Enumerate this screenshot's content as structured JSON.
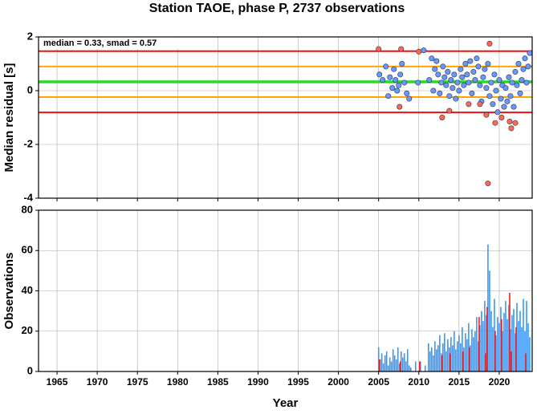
{
  "chart_data": [
    {
      "type": "scatter",
      "title": "Station TAOE, phase P, 2737 observations",
      "annotation": "median = 0.33, smad = 0.57",
      "ylabel": "Median residual [s]",
      "xlim": [
        1962.7,
        2024.1
      ],
      "xticks": [
        1965,
        1970,
        1975,
        1980,
        1985,
        1990,
        1995,
        2000,
        2005,
        2010,
        2015,
        2020
      ],
      "show_xtick_labels": false,
      "ylim": [
        -4,
        2
      ],
      "yticks": [
        -4,
        -2,
        0,
        2
      ],
      "grid": true,
      "reference_lines": [
        {
          "value": 1.47,
          "color": "#ee1111"
        },
        {
          "value": 0.9,
          "color": "#ffa500"
        },
        {
          "value": 0.33,
          "color": "#22dd22"
        },
        {
          "value": -0.24,
          "color": "#ffa500"
        },
        {
          "value": -0.81,
          "color": "#ee1111"
        }
      ],
      "series": [
        {
          "color": "#6699ff",
          "x": [
            2005.1,
            2005.5,
            2005.9,
            2006.2,
            2006.4,
            2006.7,
            2006.9,
            2007.1,
            2007.3,
            2007.5,
            2007.7,
            2007.9,
            2008.2,
            2008.5,
            2008.8,
            2009.9,
            2010.6,
            2011.3,
            2011.6,
            2011.8,
            2012.0,
            2012.2,
            2012.4,
            2012.6,
            2012.8,
            2013.0,
            2013.2,
            2013.4,
            2013.6,
            2013.8,
            2014.0,
            2014.2,
            2014.4,
            2014.6,
            2014.8,
            2015.0,
            2015.2,
            2015.4,
            2015.6,
            2015.8,
            2016.0,
            2016.2,
            2016.4,
            2016.6,
            2016.8,
            2017.0,
            2017.2,
            2017.4,
            2017.6,
            2017.8,
            2018.0,
            2018.2,
            2018.4,
            2018.6,
            2018.8,
            2019.0,
            2019.2,
            2019.4,
            2019.6,
            2019.8,
            2020.0,
            2020.2,
            2020.4,
            2020.6,
            2020.8,
            2021.0,
            2021.2,
            2021.4,
            2021.6,
            2021.8,
            2022.0,
            2022.2,
            2022.4,
            2022.6,
            2022.8,
            2023.0,
            2023.2,
            2023.4,
            2023.6,
            2023.8
          ],
          "values": [
            0.6,
            0.4,
            0.9,
            -0.2,
            0.5,
            0.1,
            0.8,
            0.4,
            0.0,
            0.2,
            0.6,
            1.0,
            0.3,
            -0.1,
            -0.3,
            0.3,
            1.5,
            0.4,
            1.2,
            0.0,
            0.8,
            1.1,
            0.6,
            -0.1,
            0.3,
            0.9,
            0.5,
            0.2,
            0.7,
            -0.2,
            0.4,
            0.1,
            0.6,
            -0.3,
            0.3,
            0.0,
            0.8,
            0.5,
            0.2,
            1.0,
            0.6,
            0.3,
            1.1,
            -0.1,
            0.7,
            0.4,
            1.2,
            0.9,
            0.2,
            -0.4,
            0.5,
            0.8,
            0.1,
            1.0,
            -0.2,
            0.3,
            -0.5,
            0.6,
            0.0,
            -0.8,
            0.4,
            -0.3,
            0.2,
            -0.6,
            0.1,
            -0.4,
            0.5,
            -0.2,
            0.3,
            -0.6,
            0.7,
            0.2,
            1.0,
            -0.1,
            0.4,
            0.8,
            1.2,
            0.3,
            0.9,
            1.4
          ]
        },
        {
          "color": "#ff6655",
          "x": [
            2005.0,
            2007.8,
            2007.6,
            2010.0,
            2012.9,
            2013.8,
            2016.2,
            2017.6,
            2018.4,
            2018.6,
            2018.8,
            2019.5,
            2020.3,
            2021.3,
            2021.5,
            2022.0
          ],
          "values": [
            1.55,
            1.55,
            -0.6,
            1.45,
            -1.0,
            -0.75,
            -0.5,
            -0.5,
            -0.9,
            -3.45,
            1.75,
            -1.2,
            -1.0,
            -1.15,
            -1.4,
            -1.2
          ]
        }
      ]
    },
    {
      "type": "bar",
      "xlabel": "Year",
      "ylabel": "Observations",
      "xlim": [
        1962.7,
        2024.1
      ],
      "xticks": [
        1965,
        1970,
        1975,
        1980,
        1985,
        1990,
        1995,
        2000,
        2005,
        2010,
        2015,
        2020
      ],
      "show_xtick_labels": true,
      "ylim": [
        0,
        80
      ],
      "yticks": [
        0,
        20,
        40,
        60,
        80
      ],
      "grid": true,
      "series": [
        {
          "color": "#3399ff",
          "x": [
            2005.0,
            2005.2,
            2005.4,
            2005.6,
            2005.8,
            2006.0,
            2006.2,
            2006.4,
            2006.6,
            2006.8,
            2007.0,
            2007.2,
            2007.4,
            2007.6,
            2007.8,
            2008.0,
            2008.2,
            2008.4,
            2008.6,
            2008.8,
            2009.0,
            2009.2,
            2009.4,
            2009.6,
            2009.8,
            2010.0,
            2010.2,
            2010.4,
            2010.6,
            2010.8,
            2011.0,
            2011.2,
            2011.4,
            2011.6,
            2011.8,
            2012.0,
            2012.2,
            2012.4,
            2012.6,
            2012.8,
            2013.0,
            2013.2,
            2013.4,
            2013.6,
            2013.8,
            2014.0,
            2014.2,
            2014.4,
            2014.6,
            2014.8,
            2015.0,
            2015.2,
            2015.4,
            2015.6,
            2015.8,
            2016.0,
            2016.2,
            2016.4,
            2016.6,
            2016.8,
            2017.0,
            2017.2,
            2017.4,
            2017.6,
            2017.8,
            2018.0,
            2018.2,
            2018.4,
            2018.6,
            2018.8,
            2019.0,
            2019.2,
            2019.4,
            2019.6,
            2019.8,
            2020.0,
            2020.2,
            2020.4,
            2020.6,
            2020.8,
            2021.0,
            2021.2,
            2021.4,
            2021.6,
            2021.8,
            2022.0,
            2022.2,
            2022.4,
            2022.6,
            2022.8,
            2023.0,
            2023.2,
            2023.4,
            2023.6,
            2023.8
          ],
          "values": [
            12,
            6,
            9,
            4,
            8,
            10,
            3,
            7,
            5,
            11,
            8,
            6,
            12,
            4,
            10,
            7,
            9,
            5,
            11,
            3,
            2,
            0,
            0,
            5,
            0,
            0,
            5,
            0,
            0,
            3,
            0,
            14,
            10,
            12,
            8,
            15,
            11,
            13,
            18,
            9,
            14,
            19,
            10,
            16,
            12,
            17,
            13,
            20,
            11,
            15,
            18,
            14,
            22,
            12,
            19,
            16,
            24,
            13,
            21,
            17,
            20,
            27,
            15,
            23,
            30,
            25,
            35,
            28,
            63,
            50,
            30,
            22,
            36,
            18,
            27,
            24,
            32,
            20,
            29,
            35,
            26,
            33,
            21,
            28,
            31,
            19,
            34,
            25,
            30,
            22,
            36,
            20,
            35,
            24,
            17
          ]
        },
        {
          "color": "#ee2222",
          "x": [
            2005.1,
            2007.7,
            2010.1,
            2012.9,
            2013.9,
            2015.5,
            2016.3,
            2017.5,
            2018.3,
            2018.5,
            2019.5,
            2020.3,
            2021.3,
            2021.5,
            2022.1,
            2023.3
          ],
          "values": [
            6,
            5,
            5,
            8,
            9,
            10,
            12,
            27,
            9,
            32,
            20,
            26,
            39,
            10,
            22,
            9
          ]
        }
      ]
    }
  ]
}
